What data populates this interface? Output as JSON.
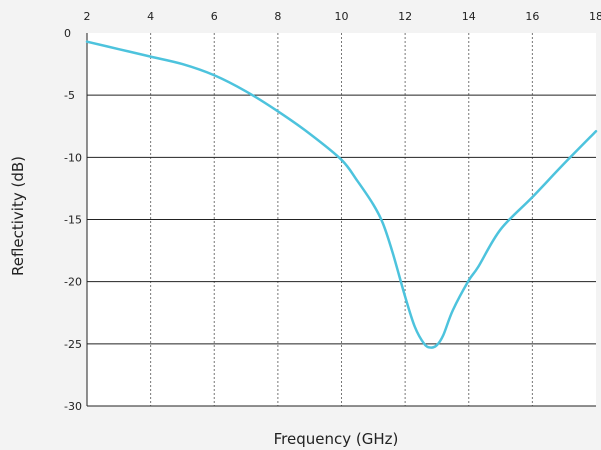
{
  "chart_data": {
    "type": "line",
    "xlabel": "Frequency (GHz)",
    "ylabel": "Reflectivity (dB)",
    "xlim": [
      2,
      18
    ],
    "ylim": [
      -30,
      0
    ],
    "x_ticks": [
      2,
      4,
      6,
      8,
      10,
      12,
      14,
      16,
      18
    ],
    "y_ticks": [
      0,
      -5,
      -10,
      -15,
      -20,
      -25,
      -30
    ],
    "x_tick_position": "top",
    "grid": {
      "x": "dotted",
      "y": "solid"
    },
    "series": [
      {
        "color": "#4dc3dd",
        "x": [
          2,
          3,
          4,
          5,
          6,
          7,
          8,
          9,
          10,
          10.5,
          11,
          11.3,
          11.6,
          12,
          12.3,
          12.6,
          12.8,
          13.0,
          13.2,
          13.5,
          14,
          14.3,
          15,
          16,
          17,
          18
        ],
        "y": [
          -0.7,
          -1.3,
          -1.9,
          -2.5,
          -3.4,
          -4.7,
          -6.3,
          -8.1,
          -10.2,
          -11.9,
          -13.8,
          -15.3,
          -17.6,
          -21.2,
          -23.6,
          -25.0,
          -25.3,
          -25.1,
          -24.3,
          -22.3,
          -19.9,
          -18.8,
          -15.8,
          -13.2,
          -10.5,
          -7.9
        ]
      }
    ]
  }
}
